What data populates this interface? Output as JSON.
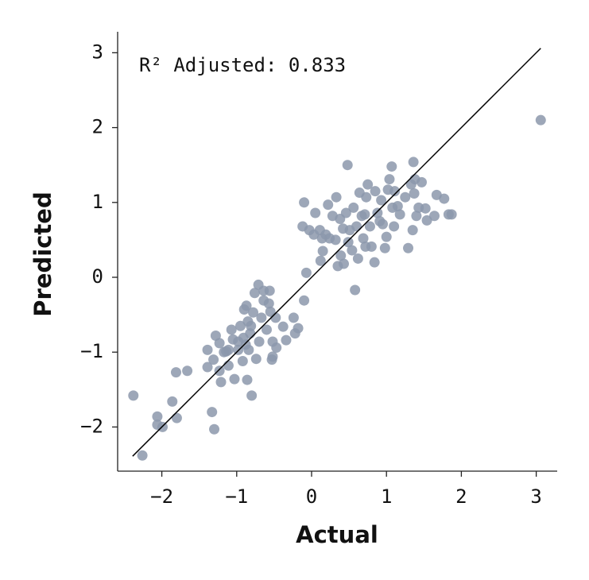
{
  "chart_data": {
    "type": "scatter",
    "x_label": "Actual",
    "y_label": "Predicted",
    "annotation": "R² Adjusted: 0.833",
    "xlim": [
      -2.59,
      3.28
    ],
    "ylim": [
      -2.59,
      3.28
    ],
    "xticks": [
      {
        "value": -2,
        "label": "−2"
      },
      {
        "value": -1,
        "label": "−1"
      },
      0,
      1,
      2,
      3
    ],
    "yticks": [
      {
        "value": -2,
        "label": "−2"
      },
      {
        "value": -1,
        "label": "−1"
      },
      0,
      1,
      2,
      3
    ],
    "reference_line": {
      "x": [
        -2.39,
        3.06
      ],
      "y": [
        -2.39,
        3.06
      ],
      "color": "#000000"
    },
    "series": [
      {
        "color": "#8c98ab",
        "x": [
          -2.38,
          -2.26,
          -2.06,
          -2.06,
          -1.99,
          -1.86,
          -1.8,
          -1.81,
          -1.66,
          -1.33,
          -1.3,
          -1.39,
          -1.39,
          -1.31,
          -1.28,
          -1.23,
          -1.21,
          -1.23,
          -1.17,
          -1.11,
          -1.11,
          -1.05,
          -1.03,
          -0.98,
          -0.95,
          -0.92,
          -0.9,
          -0.88,
          -0.87,
          -0.85,
          -0.86,
          -0.8,
          -0.84,
          -0.82,
          -0.78,
          -0.74,
          -0.71,
          -0.76,
          -0.7,
          -0.67,
          -0.64,
          -0.64,
          -0.56,
          -0.57,
          -0.6,
          -0.55,
          -0.52,
          -0.52,
          -0.53,
          -0.47,
          -0.48,
          -0.38,
          -0.34,
          -0.24,
          -0.22,
          -0.18,
          -0.1,
          -0.07,
          -0.12,
          -0.1,
          -0.03,
          0.03,
          0.05,
          0.11,
          0.12,
          0.14,
          0.15,
          0.19,
          0.22,
          0.24,
          0.28,
          0.32,
          0.33,
          0.35,
          0.38,
          0.39,
          0.42,
          0.43,
          0.46,
          0.48,
          0.49,
          0.51,
          0.54,
          0.56,
          0.58,
          0.6,
          0.62,
          0.64,
          0.67,
          0.69,
          0.71,
          0.73,
          0.75,
          0.78,
          0.8,
          0.84,
          0.85,
          0.88,
          0.91,
          0.93,
          0.95,
          0.98,
          1.0,
          1.02,
          1.04,
          1.07,
          1.08,
          1.1,
          1.11,
          1.15,
          1.18,
          1.25,
          1.29,
          1.33,
          1.35,
          1.36,
          1.37,
          1.38,
          1.4,
          1.43,
          1.47,
          1.52,
          1.54,
          1.64,
          1.67,
          1.77,
          1.83,
          1.87,
          3.06,
          -1.07,
          -0.91,
          -1.14,
          -0.81,
          -0.98,
          0.72
        ],
        "y": [
          -1.58,
          -2.38,
          -1.86,
          -1.97,
          -2.0,
          -1.66,
          -1.88,
          -1.27,
          -1.25,
          -1.8,
          -2.03,
          -1.2,
          -0.97,
          -1.1,
          -0.78,
          -1.25,
          -1.4,
          -0.88,
          -1.0,
          -1.18,
          -0.97,
          -0.83,
          -1.36,
          -0.97,
          -0.65,
          -1.12,
          -0.43,
          -0.9,
          -0.38,
          -0.59,
          -1.37,
          -1.58,
          -0.97,
          -0.75,
          -0.47,
          -1.09,
          -0.1,
          -0.21,
          -0.86,
          -0.54,
          -0.18,
          -0.31,
          -0.18,
          -0.35,
          -0.7,
          -0.46,
          -0.86,
          -1.06,
          -1.1,
          -0.94,
          -0.54,
          -0.66,
          -0.84,
          -0.54,
          -0.75,
          -0.68,
          -0.31,
          0.06,
          0.68,
          1.0,
          0.63,
          0.57,
          0.86,
          0.63,
          0.22,
          0.52,
          0.35,
          0.57,
          0.97,
          0.52,
          0.82,
          0.5,
          1.07,
          0.15,
          0.78,
          0.29,
          0.65,
          0.18,
          0.86,
          1.5,
          0.47,
          0.63,
          0.36,
          0.93,
          -0.17,
          0.68,
          0.25,
          1.13,
          0.82,
          0.52,
          0.84,
          1.07,
          1.24,
          0.68,
          0.41,
          0.2,
          1.15,
          0.86,
          0.75,
          1.03,
          0.71,
          0.39,
          0.54,
          1.17,
          1.31,
          1.48,
          0.93,
          0.68,
          1.15,
          0.95,
          0.84,
          1.07,
          0.39,
          1.24,
          0.63,
          1.54,
          1.12,
          1.31,
          0.82,
          0.93,
          1.27,
          0.92,
          0.76,
          0.82,
          1.1,
          1.05,
          0.84,
          0.84,
          2.1,
          -0.7,
          -0.81,
          -0.99,
          -0.65,
          -0.86,
          0.41
        ]
      }
    ]
  }
}
